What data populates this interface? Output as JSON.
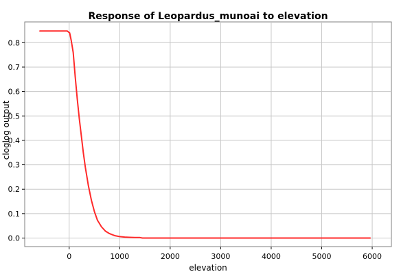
{
  "chart_data": {
    "type": "line",
    "title": "Response of Leopardus_munoai to elevation",
    "xlabel": "elevation",
    "ylabel": "cloglog output",
    "xlim": [
      -880,
      6380
    ],
    "ylim": [
      -0.035,
      0.885
    ],
    "grid": true,
    "legend": "none",
    "x_ticks": [
      0,
      1000,
      2000,
      3000,
      4000,
      5000,
      6000
    ],
    "y_ticks": [
      0.0,
      0.1,
      0.2,
      0.3,
      0.4,
      0.5,
      0.6,
      0.7,
      0.8
    ],
    "x_tick_labels": [
      "0",
      "1000",
      "2000",
      "3000",
      "4000",
      "5000",
      "6000"
    ],
    "y_tick_labels": [
      "0.0",
      "0.1",
      "0.2",
      "0.3",
      "0.4",
      "0.5",
      "0.6",
      "0.7",
      "0.8"
    ],
    "series": [
      {
        "color": "#ff2a2a",
        "x": [
          -580,
          -350,
          -150,
          -40,
          10,
          40,
          80,
          120,
          160,
          200,
          240,
          280,
          320,
          380,
          440,
          500,
          560,
          640,
          720,
          800,
          900,
          1000,
          1100,
          1200,
          1300,
          1400,
          1450,
          2000,
          3000,
          4000,
          5000,
          5960
        ],
        "y": [
          0.848,
          0.848,
          0.848,
          0.848,
          0.84,
          0.81,
          0.76,
          0.66,
          0.57,
          0.49,
          0.42,
          0.35,
          0.29,
          0.215,
          0.155,
          0.108,
          0.073,
          0.046,
          0.028,
          0.018,
          0.01,
          0.006,
          0.004,
          0.003,
          0.002,
          0.002,
          0.0,
          0.0,
          0.0,
          0.0,
          0.0,
          0.0
        ]
      }
    ]
  }
}
